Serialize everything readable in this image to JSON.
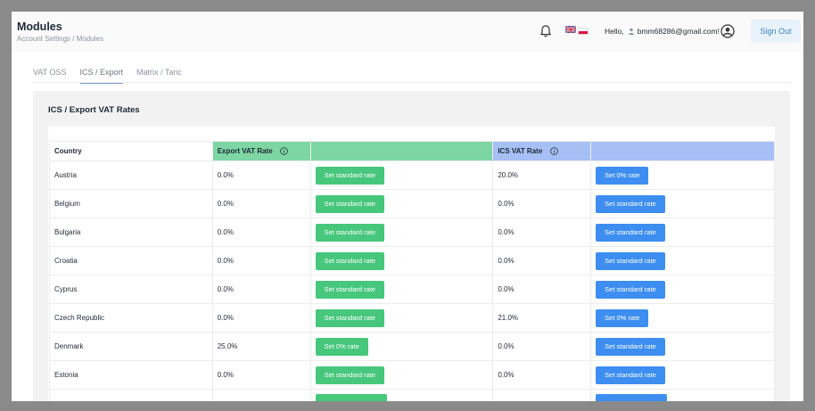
{
  "header": {
    "title": "Modules",
    "breadcrumb": "Account Settings / Modules",
    "greeting": "Hello,",
    "email": "bmm68286@gmail.com!",
    "sign_out": "Sign Out"
  },
  "tabs": [
    {
      "label": "VAT OSS",
      "active": false
    },
    {
      "label": "ICS / Export",
      "active": true
    },
    {
      "label": "Matrix / Taric",
      "active": false
    }
  ],
  "panel": {
    "title": "ICS / Export VAT Rates"
  },
  "table": {
    "headers": {
      "country": "Country",
      "export_rate": "Export VAT Rate",
      "ics_rate": "ICS VAT Rate"
    },
    "rows": [
      {
        "country": "Austria",
        "export_rate": "0.0%",
        "export_action": "Set standard rate",
        "ics_rate": "20.0%",
        "ics_action": "Set 0% rate"
      },
      {
        "country": "Belgium",
        "export_rate": "0.0%",
        "export_action": "Set standard rate",
        "ics_rate": "0.0%",
        "ics_action": "Set standard rate"
      },
      {
        "country": "Bulgaria",
        "export_rate": "0.0%",
        "export_action": "Set standard rate",
        "ics_rate": "0.0%",
        "ics_action": "Set standard rate"
      },
      {
        "country": "Croatia",
        "export_rate": "0.0%",
        "export_action": "Set standard rate",
        "ics_rate": "0.0%",
        "ics_action": "Set standard rate"
      },
      {
        "country": "Cyprus",
        "export_rate": "0.0%",
        "export_action": "Set standard rate",
        "ics_rate": "0.0%",
        "ics_action": "Set standard rate"
      },
      {
        "country": "Czech Republic",
        "export_rate": "0.0%",
        "export_action": "Set standard rate",
        "ics_rate": "21.0%",
        "ics_action": "Set 0% rate"
      },
      {
        "country": "Denmark",
        "export_rate": "25.0%",
        "export_action": "Set 0% rate",
        "ics_rate": "0.0%",
        "ics_action": "Set standard rate"
      },
      {
        "country": "Estonia",
        "export_rate": "0.0%",
        "export_action": "Set standard rate",
        "ics_rate": "0.0%",
        "ics_action": "Set standard rate"
      },
      {
        "country": "",
        "export_rate": "",
        "export_action": "",
        "ics_rate": "",
        "ics_action": ""
      }
    ]
  },
  "colors": {
    "export_header": "#7dd6a3",
    "ics_header": "#a6c0f5",
    "export_button": "#47c77c",
    "ics_button": "#3d8ef0",
    "sign_out_bg": "#e8f2fb"
  },
  "icons": [
    "bell-icon",
    "uk-flag-icon",
    "poland-flag-icon",
    "user-icon",
    "avatar-icon",
    "info-icon"
  ]
}
